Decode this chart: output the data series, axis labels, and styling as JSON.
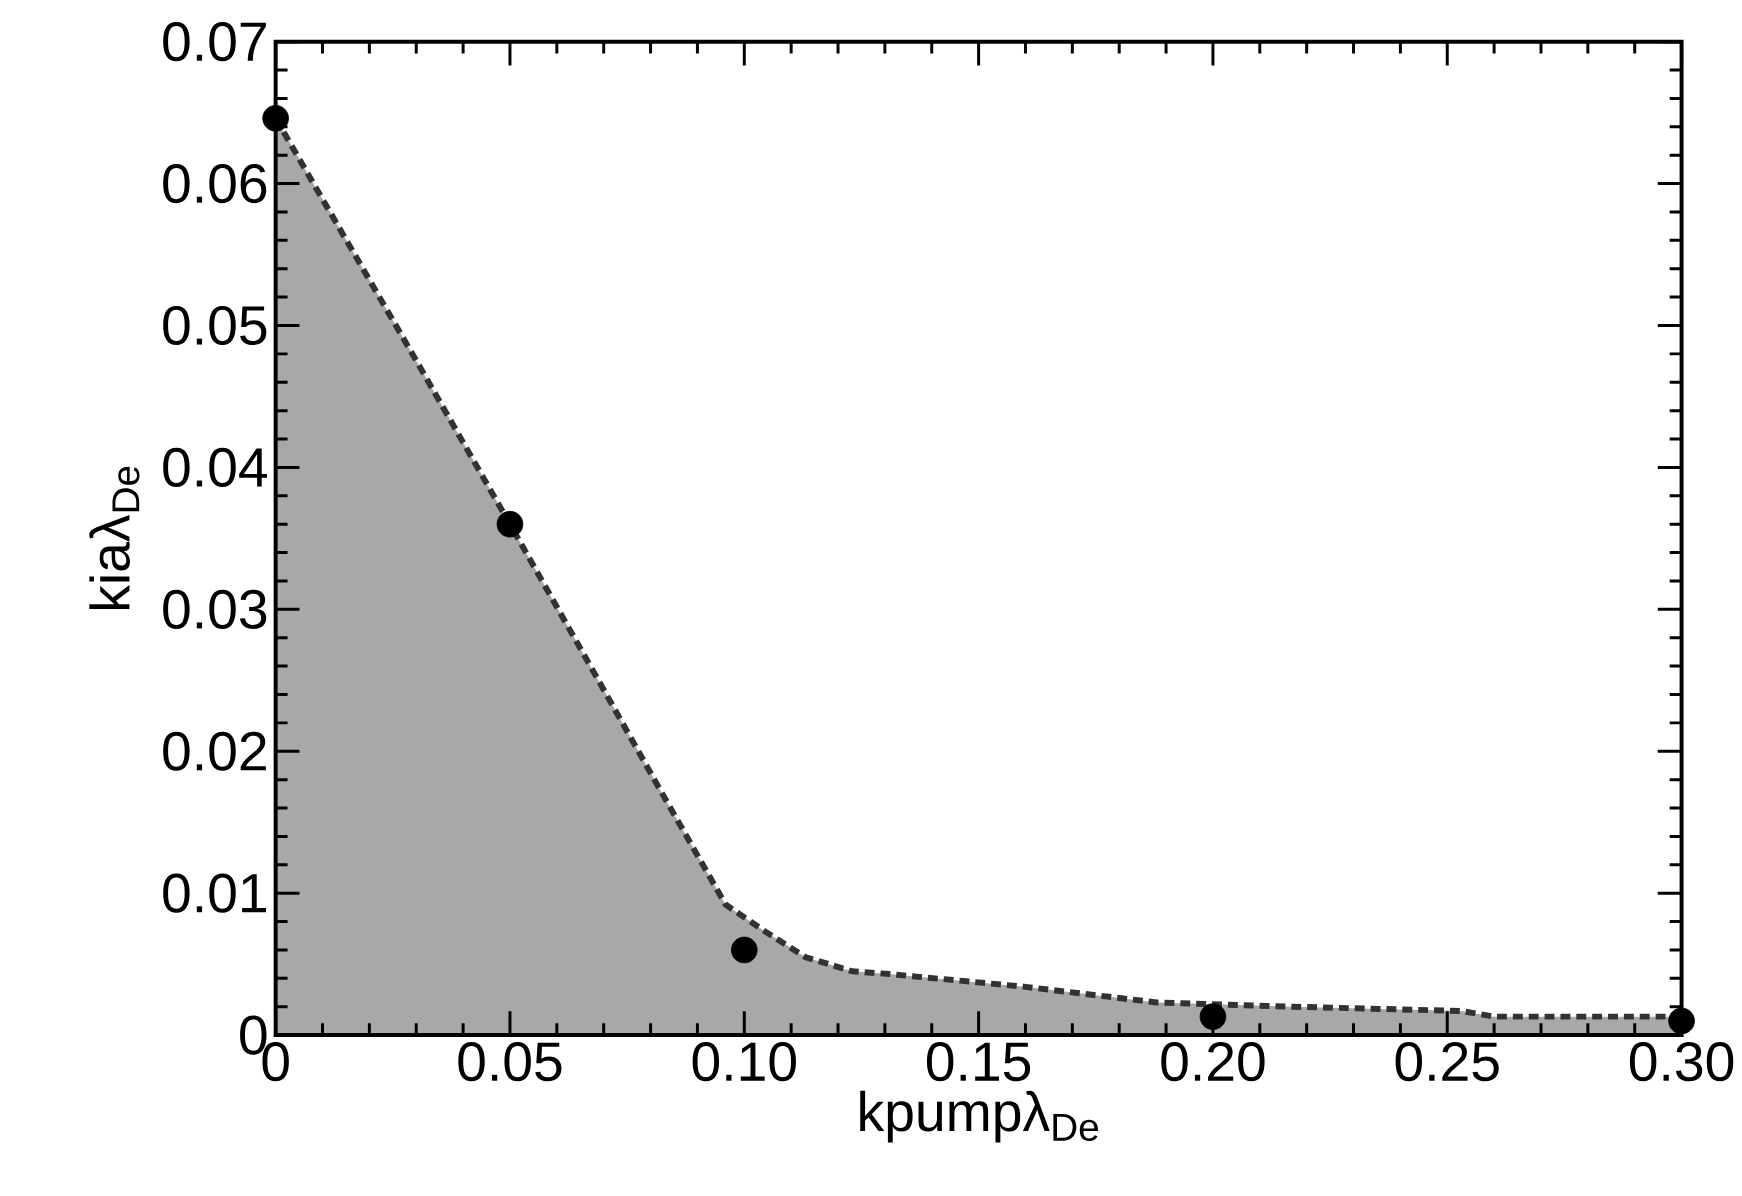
{
  "chart_data": {
    "type": "area",
    "xlabel": "kpumpλ$_{De}$",
    "ylabel": "kiaλ$_{De}$",
    "xlim": [
      0,
      0.3
    ],
    "ylim": [
      0,
      0.07
    ],
    "xticks": [
      0,
      0.05,
      {
        "value": 0.1,
        "label": "0.10"
      },
      0.15,
      {
        "value": 0.2,
        "label": "0.20"
      },
      0.25,
      {
        "value": 0.3,
        "label": "0.30"
      }
    ],
    "yticks": [
      0,
      0.01,
      0.02,
      0.03,
      0.04,
      0.05,
      0.06,
      0.07
    ],
    "series": [
      {
        "color": "#a8a8a8",
        "marker": "none",
        "line_style": "dashed",
        "x": [
          0,
          0.01,
          0.029,
          0.05,
          0.0675,
          0.082,
          0.096,
          0.104,
          0.113,
          0.123,
          0.131,
          0.16,
          0.188,
          0.217,
          0.253,
          0.26,
          0.298,
          0.3
        ],
        "values": [
          0.0646,
          0.0589,
          0.0481,
          0.036,
          0.0258,
          0.0173,
          0.0092,
          0.0074,
          0.0055,
          0.0045,
          0.0043,
          0.0034,
          0.0023,
          0.002,
          0.0017,
          0.0013,
          0.0013,
          0.001
        ]
      },
      {
        "type": "scatter",
        "color": "#000000",
        "marker": "circle",
        "x": [
          0,
          0.05,
          0.1,
          0.2,
          0.3
        ],
        "values": [
          0.0646,
          0.036,
          0.006,
          0.0013,
          0.001
        ]
      }
    ]
  }
}
